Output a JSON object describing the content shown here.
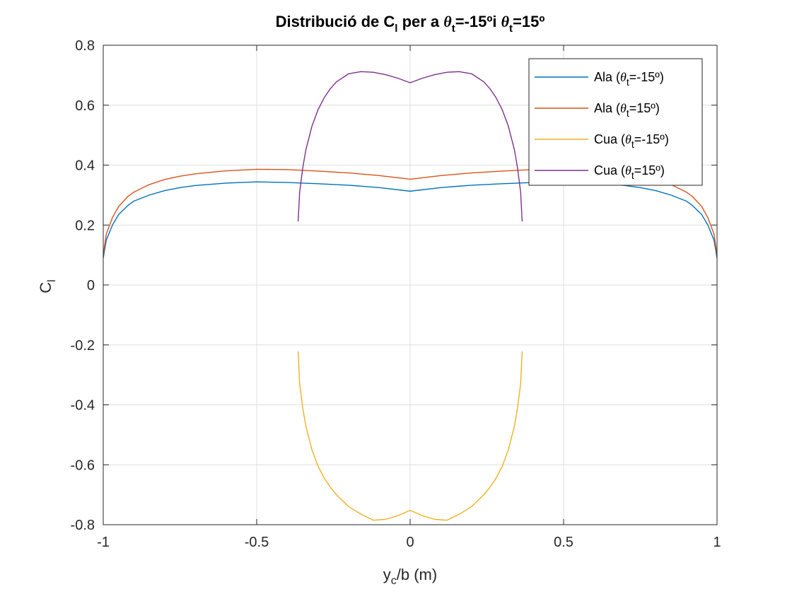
{
  "chart_data": {
    "type": "line",
    "title": {
      "prefix": "Distribució de C",
      "sub1": "l",
      "mid1": " per a ",
      "theta1": "θ",
      "sub2": "t",
      "mid2": "=-15ºi ",
      "theta2": "θ",
      "sub3": "t",
      "end": "=15º"
    },
    "xlabel": {
      "main": "y",
      "sub": "c",
      "rest": "/b (m)"
    },
    "ylabel": {
      "main": "C",
      "sub": "l"
    },
    "xlim": [
      -1,
      1
    ],
    "ylim": [
      -0.8,
      0.8
    ],
    "xticks": [
      -1,
      -0.5,
      0,
      0.5,
      1
    ],
    "xtick_labels": [
      "-1",
      "-0.5",
      "0",
      "0.5",
      "1"
    ],
    "yticks": [
      -0.8,
      -0.6,
      -0.4,
      -0.2,
      0,
      0.2,
      0.4,
      0.6,
      0.8
    ],
    "ytick_labels": [
      "-0.8",
      "-0.6",
      "-0.4",
      "-0.2",
      "0",
      "0.2",
      "0.4",
      "0.6",
      "0.8"
    ],
    "grid": true,
    "legend_position": "top-right",
    "series": [
      {
        "name": "Ala (θt=-15º)",
        "legend": {
          "pre": "Ala (",
          "theta": "θ",
          "sub": "t",
          "post": "=-15º)"
        },
        "color": "#0072BD",
        "x": [
          -1,
          -0.99,
          -0.97,
          -0.95,
          -0.92,
          -0.9,
          -0.85,
          -0.8,
          -0.75,
          -0.7,
          -0.6,
          -0.5,
          -0.4,
          -0.3,
          -0.2,
          -0.1,
          0,
          0.1,
          0.2,
          0.3,
          0.4,
          0.5,
          0.6,
          0.7,
          0.75,
          0.8,
          0.85,
          0.9,
          0.92,
          0.95,
          0.97,
          0.99,
          1
        ],
        "y": [
          0.09,
          0.15,
          0.2,
          0.235,
          0.265,
          0.28,
          0.3,
          0.315,
          0.325,
          0.332,
          0.34,
          0.344,
          0.342,
          0.338,
          0.333,
          0.325,
          0.313,
          0.325,
          0.333,
          0.338,
          0.342,
          0.344,
          0.34,
          0.332,
          0.325,
          0.315,
          0.3,
          0.28,
          0.265,
          0.235,
          0.2,
          0.15,
          0.09
        ]
      },
      {
        "name": "Ala (θt=15º)",
        "legend": {
          "pre": "Ala (",
          "theta": "θ",
          "sub": "t",
          "post": "=15º)"
        },
        "color": "#D95319",
        "x": [
          -1,
          -0.99,
          -0.97,
          -0.95,
          -0.92,
          -0.9,
          -0.85,
          -0.8,
          -0.75,
          -0.7,
          -0.6,
          -0.5,
          -0.4,
          -0.3,
          -0.2,
          -0.1,
          0,
          0.1,
          0.2,
          0.3,
          0.4,
          0.5,
          0.6,
          0.7,
          0.75,
          0.8,
          0.85,
          0.9,
          0.92,
          0.95,
          0.97,
          0.99,
          1
        ],
        "y": [
          0.1,
          0.17,
          0.225,
          0.262,
          0.295,
          0.31,
          0.335,
          0.352,
          0.363,
          0.371,
          0.381,
          0.386,
          0.385,
          0.38,
          0.374,
          0.365,
          0.353,
          0.365,
          0.374,
          0.38,
          0.385,
          0.386,
          0.381,
          0.371,
          0.363,
          0.352,
          0.335,
          0.31,
          0.295,
          0.262,
          0.225,
          0.17,
          0.1
        ]
      },
      {
        "name": "Cua (θt=-15º)",
        "legend": {
          "pre": "Cua (",
          "theta": "θ",
          "sub": "t",
          "post": "=-15º)"
        },
        "color": "#EDB120",
        "x": [
          -0.365,
          -0.36,
          -0.35,
          -0.34,
          -0.32,
          -0.3,
          -0.28,
          -0.26,
          -0.24,
          -0.2,
          -0.16,
          -0.12,
          -0.08,
          -0.04,
          0,
          0.04,
          0.08,
          0.12,
          0.16,
          0.2,
          0.24,
          0.26,
          0.28,
          0.3,
          0.32,
          0.34,
          0.35,
          0.36,
          0.365
        ],
        "y": [
          -0.222,
          -0.33,
          -0.41,
          -0.47,
          -0.55,
          -0.605,
          -0.645,
          -0.675,
          -0.7,
          -0.74,
          -0.765,
          -0.785,
          -0.782,
          -0.77,
          -0.752,
          -0.77,
          -0.782,
          -0.785,
          -0.765,
          -0.74,
          -0.7,
          -0.675,
          -0.645,
          -0.605,
          -0.55,
          -0.47,
          -0.41,
          -0.33,
          -0.222
        ]
      },
      {
        "name": "Cua (θt=15º)",
        "legend": {
          "pre": "Cua (",
          "theta": "θ",
          "sub": "t",
          "post": "=15º)"
        },
        "color": "#7E2F8E",
        "x": [
          -0.365,
          -0.36,
          -0.35,
          -0.34,
          -0.32,
          -0.3,
          -0.28,
          -0.26,
          -0.24,
          -0.2,
          -0.16,
          -0.12,
          -0.08,
          -0.04,
          0,
          0.04,
          0.08,
          0.12,
          0.16,
          0.2,
          0.24,
          0.26,
          0.28,
          0.3,
          0.32,
          0.34,
          0.35,
          0.36,
          0.365
        ],
        "y": [
          0.212,
          0.31,
          0.39,
          0.45,
          0.53,
          0.585,
          0.625,
          0.655,
          0.678,
          0.705,
          0.712,
          0.71,
          0.702,
          0.69,
          0.675,
          0.69,
          0.702,
          0.71,
          0.712,
          0.705,
          0.678,
          0.655,
          0.625,
          0.585,
          0.53,
          0.45,
          0.39,
          0.31,
          0.212
        ]
      }
    ]
  }
}
